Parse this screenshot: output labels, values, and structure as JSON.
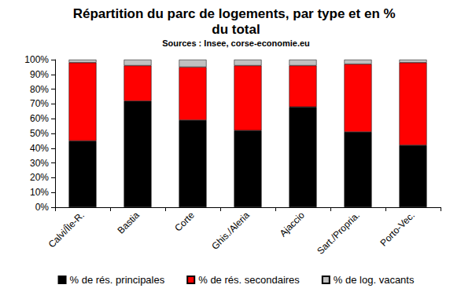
{
  "chart_data": {
    "type": "bar",
    "title": "Répartition du parc de logements, par type et en % du total",
    "subtitle": "Sources : Insee, corse-economie.eu",
    "categories": [
      "Calvi/Île-R.",
      "Bastia",
      "Corte",
      "Ghis./Aleria",
      "Ajaccio",
      "Sart./Propria.",
      "Porto-Vec."
    ],
    "series": [
      {
        "name": "% de rés. principales",
        "color": "#000000",
        "values": [
          45,
          72,
          59,
          52,
          68,
          51,
          42
        ]
      },
      {
        "name": "% de rés. secondaires",
        "color": "#ff0000",
        "values": [
          53,
          24,
          36,
          44,
          28,
          46,
          56
        ]
      },
      {
        "name": "% de log. vacants",
        "color": "#c0c0c0",
        "values": [
          2,
          4,
          5,
          4,
          4,
          3,
          2
        ]
      }
    ],
    "ylim": [
      0,
      100
    ],
    "yticks": [
      {
        "value": 0,
        "label": "0%"
      },
      {
        "value": 10,
        "label": "10%"
      },
      {
        "value": 20,
        "label": "20%"
      },
      {
        "value": 30,
        "label": "30%"
      },
      {
        "value": 40,
        "label": "40%"
      },
      {
        "value": 50,
        "label": "50%"
      },
      {
        "value": 60,
        "label": "60%"
      },
      {
        "value": 70,
        "label": "70%"
      },
      {
        "value": 80,
        "label": "80%"
      },
      {
        "value": 90,
        "label": "90%"
      },
      {
        "value": 100,
        "label": "100%"
      }
    ],
    "stacked": true,
    "grid": false,
    "legend": "bottom"
  }
}
